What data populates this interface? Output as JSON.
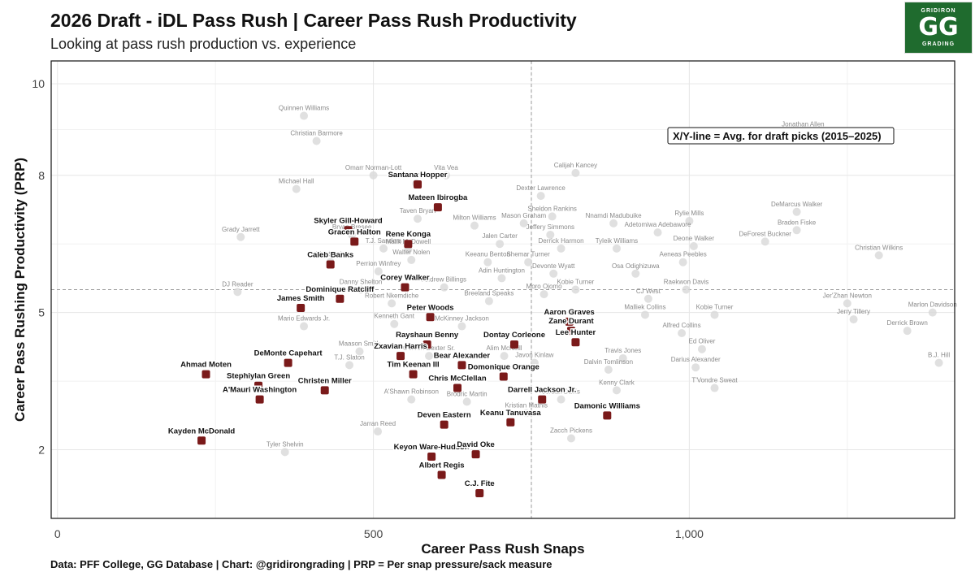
{
  "header": {
    "title": "2026 Draft - iDL Pass Rush | Career Pass Rush Productivity",
    "subtitle": "Looking at pass rush production vs. experience"
  },
  "logo": {
    "top": "GRIDIRON",
    "letters": "GG",
    "bottom": "GRADING"
  },
  "footer": "Data: PFF College, GG Database | Chart: @gridirongrading | PRP = Per snap pressure/sack measure",
  "colors": {
    "prospect_point": "#7a1a1a",
    "historical_point": "#d8d8d8",
    "refline": "#9a9a9a",
    "grid": "#e6e6e6"
  },
  "chart_data": {
    "type": "scatter",
    "xlabel": "Career Pass Rush Snaps",
    "ylabel": "Career Pass Rushing Productivity (PRP)",
    "xlim": [
      -10,
      1420
    ],
    "ylim": [
      0.5,
      10.5
    ],
    "xticks": [
      0,
      500,
      1000
    ],
    "xtick_labels": [
      "0",
      "500",
      "1,000"
    ],
    "yticks": [
      2,
      5,
      8,
      10
    ],
    "ytick_labels": [
      "2",
      "5",
      "8",
      "10"
    ],
    "grid": true,
    "reference_lines": {
      "x": 750,
      "y": 5.5
    },
    "annotation": "X/Y-line = Avg. for draft picks (2015–2025)",
    "series": [
      {
        "name": "2026 Draft iDL",
        "points": [
          {
            "label": "Santana Hopper",
            "x": 570,
            "y": 7.8
          },
          {
            "label": "Mateen Ibirogba",
            "x": 602,
            "y": 7.3
          },
          {
            "label": "Skyler Gill-Howard",
            "x": 460,
            "y": 6.8
          },
          {
            "label": "Rene Konga",
            "x": 555,
            "y": 6.5
          },
          {
            "label": "Gracen Halton",
            "x": 470,
            "y": 6.55
          },
          {
            "label": "Caleb Banks",
            "x": 432,
            "y": 6.05
          },
          {
            "label": "Corey Walker",
            "x": 550,
            "y": 5.55
          },
          {
            "label": "Dominique Ratcliff",
            "x": 447,
            "y": 5.3
          },
          {
            "label": "James Smith",
            "x": 385,
            "y": 5.1
          },
          {
            "label": "Peter Woods",
            "x": 590,
            "y": 4.9
          },
          {
            "label": "Aaron Graves",
            "x": 810,
            "y": 4.8
          },
          {
            "label": "Zane Durant",
            "x": 813,
            "y": 4.6
          },
          {
            "label": "Rayshaun Benny",
            "x": 585,
            "y": 4.3
          },
          {
            "label": "Dontay Corleone",
            "x": 723,
            "y": 4.3
          },
          {
            "label": "Lee Hunter",
            "x": 820,
            "y": 4.35
          },
          {
            "label": "Zxavian Harris",
            "x": 543,
            "y": 4.05
          },
          {
            "label": "Bear Alexander",
            "x": 640,
            "y": 3.85
          },
          {
            "label": "Ahmad Moten",
            "x": 235,
            "y": 3.65
          },
          {
            "label": "DeMonte Capehart",
            "x": 365,
            "y": 3.9
          },
          {
            "label": "Tim Keenan III",
            "x": 563,
            "y": 3.65
          },
          {
            "label": "Domonique Orange",
            "x": 706,
            "y": 3.6
          },
          {
            "label": "Christen Miller",
            "x": 423,
            "y": 3.3
          },
          {
            "label": "Chris McClellan",
            "x": 633,
            "y": 3.35
          },
          {
            "label": "Stephiylan Green",
            "x": 318,
            "y": 3.4
          },
          {
            "label": "A'Mauri Washington",
            "x": 320,
            "y": 3.1
          },
          {
            "label": "Darrell Jackson Jr.",
            "x": 767,
            "y": 3.1
          },
          {
            "label": "Damonic Williams",
            "x": 870,
            "y": 2.75
          },
          {
            "label": "Deven Eastern",
            "x": 612,
            "y": 2.55
          },
          {
            "label": "Keanu Tanuvasa",
            "x": 717,
            "y": 2.6
          },
          {
            "label": "Kayden McDonald",
            "x": 228,
            "y": 2.2
          },
          {
            "label": "Keyon Ware-Hudson",
            "x": 592,
            "y": 1.85
          },
          {
            "label": "David Oke",
            "x": 662,
            "y": 1.9
          },
          {
            "label": "Albert Regis",
            "x": 608,
            "y": 1.45
          },
          {
            "label": "C.J. Fite",
            "x": 668,
            "y": 1.05
          }
        ]
      },
      {
        "name": "Draft picks 2015–2025",
        "points": [
          {
            "label": "Quinnen Williams",
            "x": 390,
            "y": 9.3
          },
          {
            "label": "Christian Barmore",
            "x": 410,
            "y": 8.75
          },
          {
            "label": "Omarr Norman-Lott",
            "x": 500,
            "y": 8.0
          },
          {
            "label": "Vita Vea",
            "x": 615,
            "y": 8.0
          },
          {
            "label": "Calijah Kancey",
            "x": 820,
            "y": 8.05
          },
          {
            "label": "Jonathan Allen",
            "x": 1180,
            "y": 8.95
          },
          {
            "label": "Michael Hall",
            "x": 378,
            "y": 7.7
          },
          {
            "label": "Chris Jones",
            "x": 568,
            "y": 7.82
          },
          {
            "label": "Dexter Lawrence",
            "x": 765,
            "y": 7.55
          },
          {
            "label": "Sheldon Rankins",
            "x": 783,
            "y": 7.1
          },
          {
            "label": "DeMarcus Walker",
            "x": 1170,
            "y": 7.2
          },
          {
            "label": "Taven Bryan",
            "x": 570,
            "y": 7.05
          },
          {
            "label": "Milton Williams",
            "x": 660,
            "y": 6.9
          },
          {
            "label": "Mason Graham",
            "x": 738,
            "y": 6.95
          },
          {
            "label": "Nnamdi Madubuike",
            "x": 880,
            "y": 6.95
          },
          {
            "label": "Rylie Mills",
            "x": 1000,
            "y": 7.0
          },
          {
            "label": "Braden Fiske",
            "x": 1170,
            "y": 6.8
          },
          {
            "label": "Grady Jarrett",
            "x": 290,
            "y": 6.65
          },
          {
            "label": "Bryan Bresee",
            "x": 466,
            "y": 6.7
          },
          {
            "label": "Jeffery Simmons",
            "x": 780,
            "y": 6.7
          },
          {
            "label": "Adetomiwa Adebawore",
            "x": 950,
            "y": 6.75
          },
          {
            "label": "DeForest Buckner",
            "x": 1120,
            "y": 6.55
          },
          {
            "label": "T.J. Sanders",
            "x": 516,
            "y": 6.4
          },
          {
            "label": "Malik McDowell",
            "x": 555,
            "y": 6.38
          },
          {
            "label": "Jalen Carter",
            "x": 700,
            "y": 6.5
          },
          {
            "label": "Derrick Harmon",
            "x": 797,
            "y": 6.4
          },
          {
            "label": "Tyleik Williams",
            "x": 885,
            "y": 6.4
          },
          {
            "label": "Deone Walker",
            "x": 1007,
            "y": 6.45
          },
          {
            "label": "Christian Wilkins",
            "x": 1300,
            "y": 6.25
          },
          {
            "label": "Walter Nolen",
            "x": 560,
            "y": 6.15
          },
          {
            "label": "Keeanu Benton",
            "x": 681,
            "y": 6.1
          },
          {
            "label": "Shemar Turner",
            "x": 745,
            "y": 6.1
          },
          {
            "label": "Aeneas Peebles",
            "x": 990,
            "y": 6.1
          },
          {
            "label": "Tim Settle",
            "x": 432,
            "y": 6.1
          },
          {
            "label": "Perrion Winfrey",
            "x": 508,
            "y": 5.9
          },
          {
            "label": "Devonte Wyatt",
            "x": 785,
            "y": 5.85
          },
          {
            "label": "Osa Odighizuwa",
            "x": 915,
            "y": 5.85
          },
          {
            "label": "Adin Huntington",
            "x": 703,
            "y": 5.75
          },
          {
            "label": "DJ Reader",
            "x": 285,
            "y": 5.45
          },
          {
            "label": "Danny Shelton",
            "x": 480,
            "y": 5.5
          },
          {
            "label": "Andrew Billings",
            "x": 612,
            "y": 5.55
          },
          {
            "label": "Kobie Turner",
            "x": 820,
            "y": 5.5
          },
          {
            "label": "Raekwon Davis",
            "x": 995,
            "y": 5.5
          },
          {
            "label": "Moro Ojomo",
            "x": 770,
            "y": 5.4
          },
          {
            "label": "CJ West",
            "x": 935,
            "y": 5.3
          },
          {
            "label": "Jer'Zhan Newton",
            "x": 1250,
            "y": 5.2
          },
          {
            "label": "Robert Nkemdiche",
            "x": 529,
            "y": 5.2
          },
          {
            "label": "Breeland Speaks",
            "x": 683,
            "y": 5.25
          },
          {
            "label": "Kobie Turner",
            "x": 1040,
            "y": 4.95
          },
          {
            "label": "Marlon Davidson",
            "x": 1385,
            "y": 5.0
          },
          {
            "label": "Malliek Collins",
            "x": 930,
            "y": 4.95
          },
          {
            "label": "Jerry Tillery",
            "x": 1260,
            "y": 4.85
          },
          {
            "label": "Mario Edwards Jr.",
            "x": 390,
            "y": 4.7
          },
          {
            "label": "Kenneth Gant",
            "x": 533,
            "y": 4.75
          },
          {
            "label": "McKinney Jackson",
            "x": 640,
            "y": 4.7
          },
          {
            "label": "Alfred Collins",
            "x": 988,
            "y": 4.55
          },
          {
            "label": "Derrick Brown",
            "x": 1345,
            "y": 4.6
          },
          {
            "label": "Maason Smith",
            "x": 478,
            "y": 4.15
          },
          {
            "label": "Gervon Dexter Sr.",
            "x": 588,
            "y": 4.05
          },
          {
            "label": "Alim McNeill",
            "x": 707,
            "y": 4.05
          },
          {
            "label": "Ed Oliver",
            "x": 1020,
            "y": 4.2
          },
          {
            "label": "Travis Jones",
            "x": 895,
            "y": 4.0
          },
          {
            "label": "T.J. Slaton",
            "x": 462,
            "y": 3.85
          },
          {
            "label": "Javon Kinlaw",
            "x": 755,
            "y": 3.9
          },
          {
            "label": "Dalvin Tomlinson",
            "x": 872,
            "y": 3.75
          },
          {
            "label": "Darius Alexander",
            "x": 1010,
            "y": 3.8
          },
          {
            "label": "B.J. Hill",
            "x": 1395,
            "y": 3.9
          },
          {
            "label": "Kenny Clark",
            "x": 885,
            "y": 3.3
          },
          {
            "label": "T'Vondre Sweat",
            "x": 1040,
            "y": 3.35
          },
          {
            "label": "A'Shawn Robinson",
            "x": 560,
            "y": 3.1
          },
          {
            "label": "Brodric Martin",
            "x": 648,
            "y": 3.05
          },
          {
            "label": "Jordan Davis",
            "x": 797,
            "y": 3.1
          },
          {
            "label": "Kristian Mathis",
            "x": 742,
            "y": 2.8
          },
          {
            "label": "Jarran Reed",
            "x": 507,
            "y": 2.4
          },
          {
            "label": "Zacch Pickens",
            "x": 813,
            "y": 2.25
          },
          {
            "label": "Tyler Shelvin",
            "x": 360,
            "y": 1.95
          }
        ]
      }
    ]
  }
}
